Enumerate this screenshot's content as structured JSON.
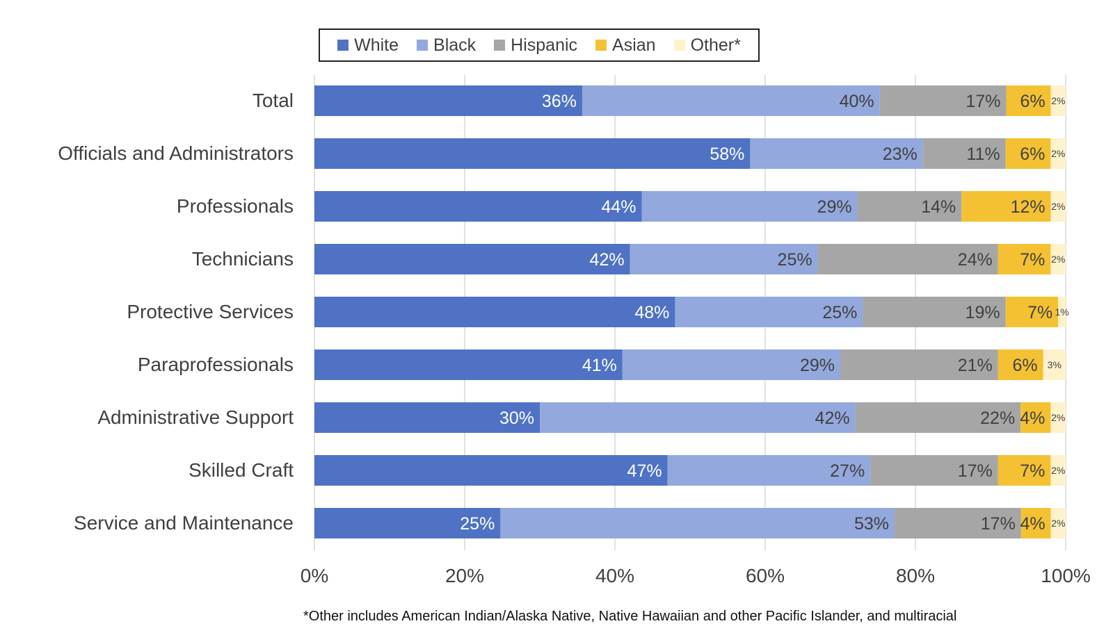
{
  "legend": [
    {
      "name": "White",
      "color": "#4F72C4"
    },
    {
      "name": "Black",
      "color": "#93A8DC"
    },
    {
      "name": "Hispanic",
      "color": "#A6A6A6"
    },
    {
      "name": "Asian",
      "color": "#F4C133"
    },
    {
      "name": "Other*",
      "color": "#FEF2CC"
    }
  ],
  "footnote": "*Other includes American Indian/Alaska Native, Native Hawaiian and other Pacific Islander, and multiracial",
  "chart_data": {
    "type": "bar",
    "orientation": "horizontal",
    "stacked": "percent",
    "categories": [
      "Total",
      "Officials and Administrators",
      "Professionals",
      "Technicians",
      "Protective Services",
      "Paraprofessionals",
      "Administrative Support",
      "Skilled Craft",
      "Service and Maintenance"
    ],
    "series": [
      {
        "name": "White",
        "color": "#4F72C4",
        "label_color": "#ffffff",
        "values": [
          36,
          58,
          44,
          42,
          48,
          41,
          30,
          47,
          25
        ],
        "labels": [
          "36%",
          "58%",
          "44%",
          "42%",
          "48%",
          "41%",
          "30%",
          "47%",
          "25%"
        ]
      },
      {
        "name": "Black",
        "color": "#93A8DC",
        "label_color": "#404040",
        "values": [
          40,
          23,
          29,
          25,
          25,
          29,
          42,
          27,
          53
        ],
        "labels": [
          "40%",
          "23%",
          "29%",
          "25%",
          "25%",
          "29%",
          "42%",
          "27%",
          "53%"
        ]
      },
      {
        "name": "Hispanic",
        "color": "#A6A6A6",
        "label_color": "#404040",
        "values": [
          17,
          11,
          14,
          24,
          19,
          21,
          22,
          17,
          17
        ],
        "labels": [
          "17%",
          "11%",
          "14%",
          "24%",
          "19%",
          "21%",
          "22%",
          "17%",
          "17%"
        ]
      },
      {
        "name": "Asian",
        "color": "#F4C133",
        "label_color": "#404040",
        "values": [
          6,
          6,
          12,
          7,
          7,
          6,
          4,
          7,
          4
        ],
        "labels": [
          "6%",
          "6%",
          "12%",
          "7%",
          "7%",
          "6%",
          "4%",
          "7%",
          "4%"
        ]
      },
      {
        "name": "Other*",
        "color": "#FEF2CC",
        "label_color": "#404040",
        "values": [
          2,
          2,
          2,
          2,
          1,
          3,
          2,
          2,
          2
        ],
        "labels": [
          "2%",
          "2%",
          "2%",
          "2%",
          "1%",
          "3%",
          "2%",
          "2%",
          "2%"
        ]
      }
    ],
    "x_ticks": [
      "0%",
      "20%",
      "40%",
      "60%",
      "80%",
      "100%"
    ],
    "xlim": [
      0,
      100
    ],
    "grid": true,
    "legend_position": "top"
  }
}
